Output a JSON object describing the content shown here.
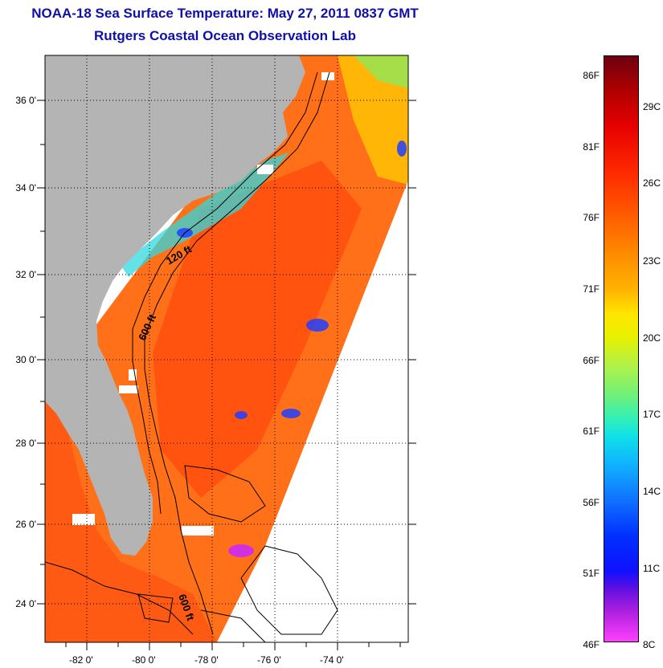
{
  "header": {
    "title_line1": "NOAA-18 Sea Surface Temperature:  May 27, 2011 0837 GMT",
    "title_line2": "Rutgers Coastal Ocean Observation Lab"
  },
  "map": {
    "x_tick_labels": [
      "-82 0'",
      "-80 0'",
      "-78 0'",
      "-76 0'",
      "-74 0'"
    ],
    "y_tick_labels": [
      "36 0'",
      "34 0'",
      "32 0'",
      "30 0'",
      "28 0'",
      "26 0'",
      "24 0'"
    ],
    "contour_labels": [
      "120 ft",
      "600 ft",
      "600 ft"
    ],
    "colors": {
      "land": "#b4b4b4",
      "warm_water": "#ff6a10",
      "no_data": "#ffffff"
    }
  },
  "colorbar": {
    "fahrenheit_labels": [
      "86F",
      "81F",
      "76F",
      "71F",
      "66F",
      "61F",
      "56F",
      "51F",
      "46F"
    ],
    "celsius_labels": [
      "29C",
      "26C",
      "23C",
      "20C",
      "17C",
      "14C",
      "11C",
      "8C"
    ]
  }
}
